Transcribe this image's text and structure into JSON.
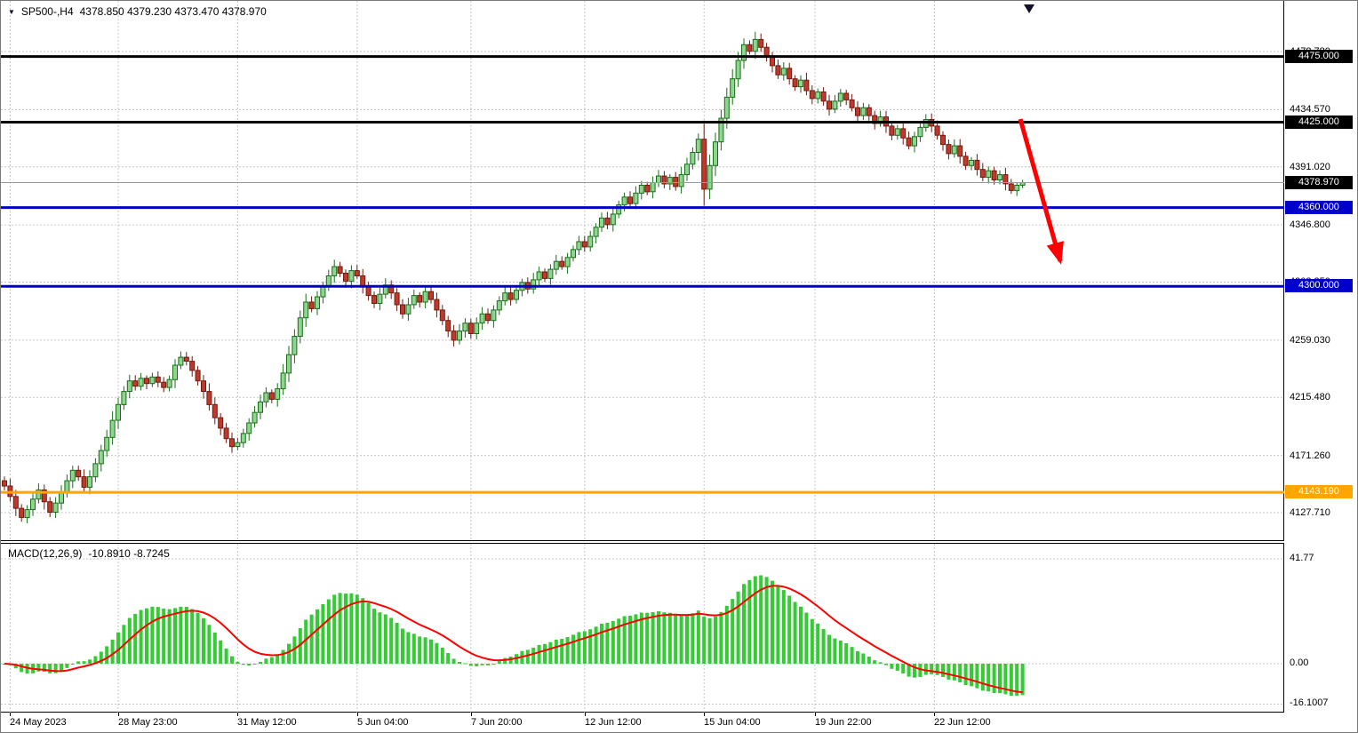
{
  "window": {
    "symbol_title": "SP500-,H4",
    "ohlc": "4378.850 4379.230 4373.470 4378.970",
    "macd_label": "MACD(12,26,9)",
    "macd_values": "-10.8910 -8.7245",
    "dropdown_icon": "▼"
  },
  "colors": {
    "candle_up": "#8fd48f",
    "candle_up_border": "#156f15",
    "candle_down": "#c0392b",
    "candle_down_border": "#6e1a10",
    "histogram": "#33cc33",
    "signal": "#ff0000",
    "arrow": "#ff0000",
    "current_price_line": "#999999",
    "level_black": "#000000",
    "level_blue": "#0000c8",
    "level_orange": "#ffa500",
    "grid": "#c6c6c6"
  },
  "price_axis": {
    "labels": [
      {
        "value": "4478.780",
        "price": 4478.78
      },
      {
        "value": "4434.570",
        "price": 4434.57
      },
      {
        "value": "4391.020",
        "price": 4391.02
      },
      {
        "value": "4346.800",
        "price": 4346.8
      },
      {
        "value": "4303.250",
        "price": 4303.25
      },
      {
        "value": "4259.030",
        "price": 4259.03
      },
      {
        "value": "4215.480",
        "price": 4215.48
      },
      {
        "value": "4171.260",
        "price": 4171.26
      },
      {
        "value": "4127.710",
        "price": 4127.71
      }
    ]
  },
  "hlines": [
    {
      "label": "4475.000",
      "price": 4475.0,
      "color": "#000000",
      "width": 3,
      "badge": "#000000"
    },
    {
      "label": "4425.000",
      "price": 4425.0,
      "color": "#000000",
      "width": 3,
      "badge": "#000000"
    },
    {
      "label": "4378.970",
      "price": 4378.97,
      "color": "#999999",
      "width": 1,
      "badge": "#000000"
    },
    {
      "label": "4360.000",
      "price": 4360.0,
      "color": "#0000c8",
      "width": 3,
      "badge": "#0000c8"
    },
    {
      "label": "4300.000",
      "price": 4300.0,
      "color": "#0000c8",
      "width": 3,
      "badge": "#0000c8"
    },
    {
      "label": "4143.190",
      "price": 4143.19,
      "color": "#ffa500",
      "width": 3,
      "badge": "#ffa500"
    }
  ],
  "time_axis": [
    {
      "label": "24 May 2023",
      "index": 1
    },
    {
      "label": "28 May 23:00",
      "index": 20
    },
    {
      "label": "31 May 12:00",
      "index": 41
    },
    {
      "label": "5 Jun 04:00",
      "index": 62
    },
    {
      "label": "7 Jun 20:00",
      "index": 82
    },
    {
      "label": "12 Jun 12:00",
      "index": 102
    },
    {
      "label": "15 Jun 04:00",
      "index": 123
    },
    {
      "label": "19 Jun 22:00",
      "index": 142.5
    },
    {
      "label": "22 Jun 12:00",
      "index": 163.5
    }
  ],
  "macd_axis": [
    {
      "label": "41.77",
      "value": 41.77
    },
    {
      "label": "0.00",
      "value": 0
    },
    {
      "label": "-16.1007",
      "value": -16.1007
    }
  ],
  "chart_data": {
    "type": "candlestick",
    "symbol": "SP500-",
    "timeframe": "H4",
    "title": "SP500-,H4",
    "ohlc_display": {
      "open": "4378.850",
      "high": "4379.230",
      "low": "4373.470",
      "close": "4378.970"
    },
    "x_range": "24 May 2023 - 23 Jun 2023",
    "y_range": [
      4106,
      4517
    ],
    "grid": true,
    "first_open": 4152,
    "closes": [
      4148,
      4140,
      4131,
      4124,
      4130,
      4138,
      4145,
      4136,
      4128,
      4135,
      4143,
      4152,
      4160,
      4155,
      4147,
      4155,
      4165,
      4175,
      4185,
      4198,
      4210,
      4220,
      4228,
      4224,
      4230,
      4226,
      4231,
      4227,
      4223,
      4229,
      4240,
      4246,
      4243,
      4236,
      4228,
      4220,
      4210,
      4200,
      4192,
      4184,
      4178,
      4181,
      4188,
      4196,
      4204,
      4212,
      4219,
      4214,
      4222,
      4234,
      4248,
      4262,
      4276,
      4288,
      4283,
      4292,
      4300,
      4308,
      4315,
      4310,
      4304,
      4312,
      4308,
      4300,
      4293,
      4287,
      4294,
      4301,
      4295,
      4286,
      4279,
      4286,
      4293,
      4288,
      4296,
      4290,
      4282,
      4274,
      4266,
      4259,
      4266,
      4272,
      4264,
      4272,
      4279,
      4274,
      4282,
      4289,
      4295,
      4290,
      4297,
      4303,
      4298,
      4305,
      4311,
      4306,
      4313,
      4319,
      4315,
      4322,
      4328,
      4334,
      4330,
      4338,
      4345,
      4352,
      4347,
      4355,
      4362,
      4368,
      4363,
      4371,
      4377,
      4372,
      4379,
      4384,
      4378,
      4383,
      4376,
      4385,
      4393,
      4402,
      4412,
      4374,
      4392,
      4410,
      4428,
      4444,
      4458,
      4472,
      4484,
      4479,
      4488,
      4482,
      4475,
      4468,
      4461,
      4466,
      4458,
      4452,
      4457,
      4449,
      4443,
      4448,
      4441,
      4435,
      4441,
      4447,
      4442,
      4436,
      4430,
      4436,
      4430,
      4424,
      4429,
      4422,
      4415,
      4420,
      4413,
      4407,
      4414,
      4421,
      4427,
      4422,
      4415,
      4408,
      4401,
      4407,
      4399,
      4392,
      4396,
      4389,
      4383,
      4388,
      4381,
      4385,
      4378,
      4373,
      4377,
      4378.97
    ],
    "levels": [
      4475.0,
      4425.0,
      4360.0,
      4300.0,
      4143.19
    ],
    "current_price": 4378.97,
    "indicator": {
      "type": "MACD",
      "fast": 12,
      "slow": 26,
      "signal": 9,
      "current_main": -10.891,
      "current_signal": -8.7245,
      "axis_max": 41.77,
      "axis_min": -16.1007
    },
    "annotation": "red down arrow pointing from 4425 area toward 4300 level"
  }
}
